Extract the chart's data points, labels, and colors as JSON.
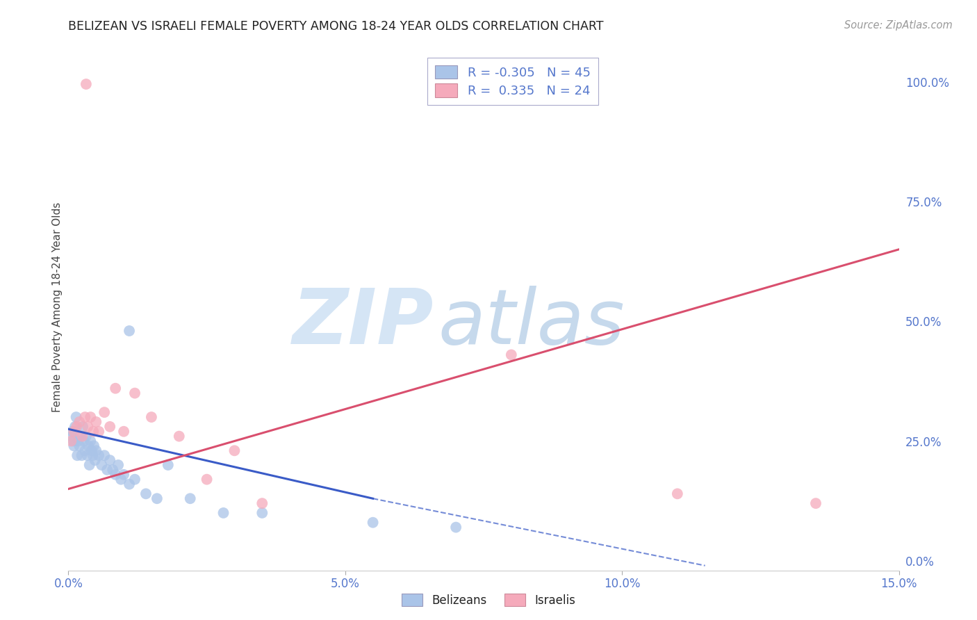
{
  "title": "BELIZEAN VS ISRAELI FEMALE POVERTY AMONG 18-24 YEAR OLDS CORRELATION CHART",
  "source": "Source: ZipAtlas.com",
  "ylabel": "Female Poverty Among 18-24 Year Olds",
  "xlim": [
    0.0,
    15.0
  ],
  "ylim": [
    -2.0,
    108.0
  ],
  "xtick_vals": [
    0.0,
    5.0,
    10.0,
    15.0
  ],
  "ytick_vals": [
    0.0,
    25.0,
    50.0,
    75.0,
    100.0
  ],
  "blue_r": "-0.305",
  "blue_n": "45",
  "pink_r": "0.335",
  "pink_n": "24",
  "belizean_color": "#aac4e8",
  "israeli_color": "#f5aabb",
  "blue_line_color": "#3a5bc7",
  "pink_line_color": "#d94f6e",
  "watermark_zip_color": "#d0dff0",
  "watermark_atlas_color": "#b8cce4",
  "bg_color": "#ffffff",
  "grid_color": "#ccccdd",
  "title_color": "#222222",
  "tick_label_color": "#5577cc",
  "belizean_x": [
    0.05,
    0.07,
    0.09,
    0.1,
    0.12,
    0.14,
    0.16,
    0.18,
    0.2,
    0.22,
    0.24,
    0.26,
    0.28,
    0.3,
    0.32,
    0.34,
    0.36,
    0.38,
    0.4,
    0.42,
    0.44,
    0.46,
    0.48,
    0.5,
    0.55,
    0.6,
    0.65,
    0.7,
    0.75,
    0.8,
    0.85,
    0.9,
    0.95,
    1.0,
    1.1,
    1.2,
    1.4,
    1.6,
    1.8,
    2.2,
    2.8,
    1.1,
    3.5,
    5.5,
    7.0
  ],
  "belizean_y": [
    26.0,
    27.0,
    25.0,
    24.0,
    28.0,
    30.0,
    22.0,
    25.0,
    24.0,
    26.0,
    22.0,
    28.0,
    25.0,
    23.0,
    26.0,
    22.0,
    24.0,
    20.0,
    25.0,
    23.0,
    22.0,
    24.0,
    21.0,
    23.0,
    22.0,
    20.0,
    22.0,
    19.0,
    21.0,
    19.0,
    18.0,
    20.0,
    17.0,
    18.0,
    16.0,
    17.0,
    14.0,
    13.0,
    20.0,
    13.0,
    10.0,
    48.0,
    10.0,
    8.0,
    7.0
  ],
  "israeli_x": [
    0.05,
    0.1,
    0.15,
    0.2,
    0.25,
    0.3,
    0.35,
    0.4,
    0.45,
    0.5,
    0.55,
    0.65,
    0.75,
    0.85,
    1.0,
    1.2,
    1.5,
    2.0,
    2.5,
    3.0,
    3.5,
    8.0,
    11.0,
    13.5
  ],
  "israeli_y": [
    25.0,
    27.0,
    28.0,
    29.0,
    26.0,
    30.0,
    28.0,
    30.0,
    27.0,
    29.0,
    27.0,
    31.0,
    28.0,
    36.0,
    27.0,
    35.0,
    30.0,
    26.0,
    17.0,
    23.0,
    12.0,
    43.0,
    14.0,
    12.0
  ],
  "israeli_outlier_x": 0.32,
  "israeli_outlier_y": 99.5,
  "blue_line_x0": 0.0,
  "blue_line_y0": 27.5,
  "blue_line_x1": 5.5,
  "blue_line_y1": 13.0,
  "blue_dash_x0": 5.5,
  "blue_dash_y0": 13.0,
  "blue_dash_x1": 11.5,
  "blue_dash_y1": -1.0,
  "pink_line_x0": 0.0,
  "pink_line_y0": 15.0,
  "pink_line_x1": 15.0,
  "pink_line_y1": 65.0
}
